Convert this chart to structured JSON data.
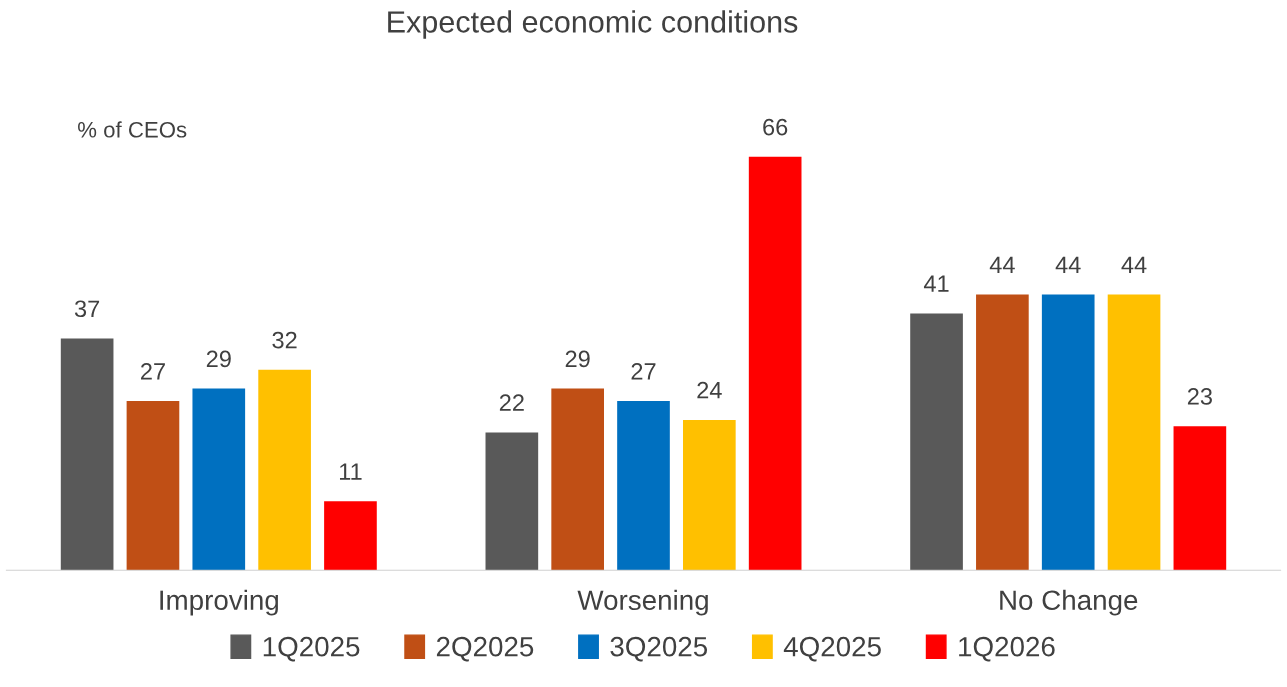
{
  "chart_data": {
    "type": "bar",
    "title": "Expected economic conditions",
    "annotations": [
      "% of CEOs"
    ],
    "categories": [
      "Improving",
      "Worsening",
      "No Change"
    ],
    "series": [
      {
        "name": "1Q2025",
        "color": "#595959",
        "values": [
          37,
          22,
          41
        ]
      },
      {
        "name": "2Q2025",
        "color": "#c04f15",
        "values": [
          27,
          29,
          44
        ]
      },
      {
        "name": "3Q2025",
        "color": "#0070c0",
        "values": [
          29,
          27,
          44
        ]
      },
      {
        "name": "4Q2025",
        "color": "#ffc000",
        "values": [
          32,
          24,
          44
        ]
      },
      {
        "name": "1Q2026",
        "color": "#ff0000",
        "values": [
          11,
          66,
          23
        ]
      }
    ],
    "tick_labels": "x",
    "data_labels": true,
    "legend": "bottom",
    "grid": false
  }
}
